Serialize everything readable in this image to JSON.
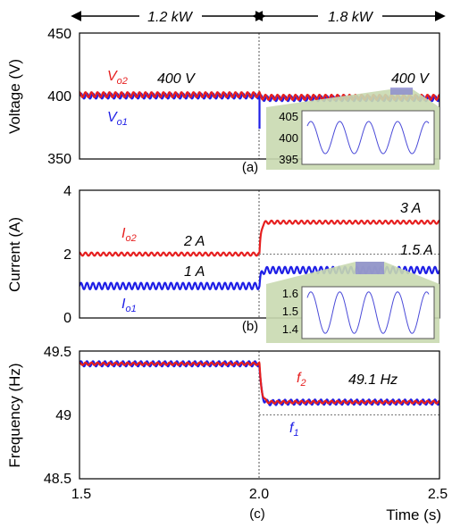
{
  "chart_data": [
    {
      "type": "line",
      "panel_label": "(a)",
      "ylabel": "Voltage (V)",
      "ylim": [
        350,
        450
      ],
      "yticks": [
        "350",
        "400",
        "450"
      ],
      "x": [
        1.5,
        2.0,
        2.5
      ],
      "series": [
        {
          "name": "Vo1",
          "name_main": "V",
          "name_sub": "o1",
          "color": "#1f1fe6",
          "before_step": 400,
          "after_step": 398,
          "ripple": 2,
          "transient": 374
        },
        {
          "name": "Vo2",
          "name_main": "V",
          "name_sub": "o2",
          "color": "#e61f1f",
          "before_step": 401,
          "after_step": 399,
          "ripple": 2
        }
      ],
      "annotations": [
        "400 V",
        "400 V"
      ],
      "inset": {
        "ylim": [
          395,
          405
        ],
        "yticks": [
          "395",
          "400",
          "405"
        ],
        "center": 400,
        "amplitude": 3
      }
    },
    {
      "type": "line",
      "panel_label": "(b)",
      "ylabel": "Current (A)",
      "ylim": [
        0,
        4
      ],
      "yticks": [
        "0",
        "2",
        "4"
      ],
      "x": [
        1.5,
        2.0,
        2.5
      ],
      "series": [
        {
          "name": "Io1",
          "name_main": "I",
          "name_sub": "o1",
          "color": "#1f1fe6",
          "before_step": 1.0,
          "after_step": 1.5,
          "ripple": 0.1
        },
        {
          "name": "Io2",
          "name_main": "I",
          "name_sub": "o2",
          "color": "#e61f1f",
          "before_step": 2.0,
          "after_step": 3.0,
          "ripple": 0.05
        }
      ],
      "annotations": [
        "2 A",
        "1 A",
        "3 A",
        "1.5 A"
      ],
      "inset": {
        "ylim": [
          1.35,
          1.65
        ],
        "yticks": [
          "1.4",
          "1.5",
          "1.6"
        ],
        "center": 1.5,
        "amplitude": 0.12
      }
    },
    {
      "type": "line",
      "panel_label": "(c)",
      "ylabel": "Frequency (Hz)",
      "ylim": [
        48.5,
        49.5
      ],
      "yticks": [
        "48.5",
        "49",
        "49.5"
      ],
      "xlabel": "Time (s)",
      "xticks": [
        "1.5",
        "2.0",
        "2.5"
      ],
      "x": [
        1.5,
        2.0,
        2.5
      ],
      "series": [
        {
          "name": "f1",
          "name_main": "f",
          "name_sub": "1",
          "color": "#1f1fe6",
          "before_step": 49.4,
          "after_step": 49.1,
          "ripple": 0.02
        },
        {
          "name": "f2",
          "name_main": "f",
          "name_sub": "2",
          "color": "#e61f1f",
          "before_step": 49.4,
          "after_step": 49.1,
          "ripple": 0.01
        }
      ],
      "annotations": [
        "49.1 Hz"
      ]
    }
  ],
  "top_labels": {
    "left_power": "1.2 kW",
    "right_power": "1.8 kW"
  },
  "colors": {
    "series1": "#1f1fe6",
    "series2": "#e61f1f",
    "inset_bg": "#c9d9b0",
    "inset_highlight": "#8a8ad0"
  }
}
